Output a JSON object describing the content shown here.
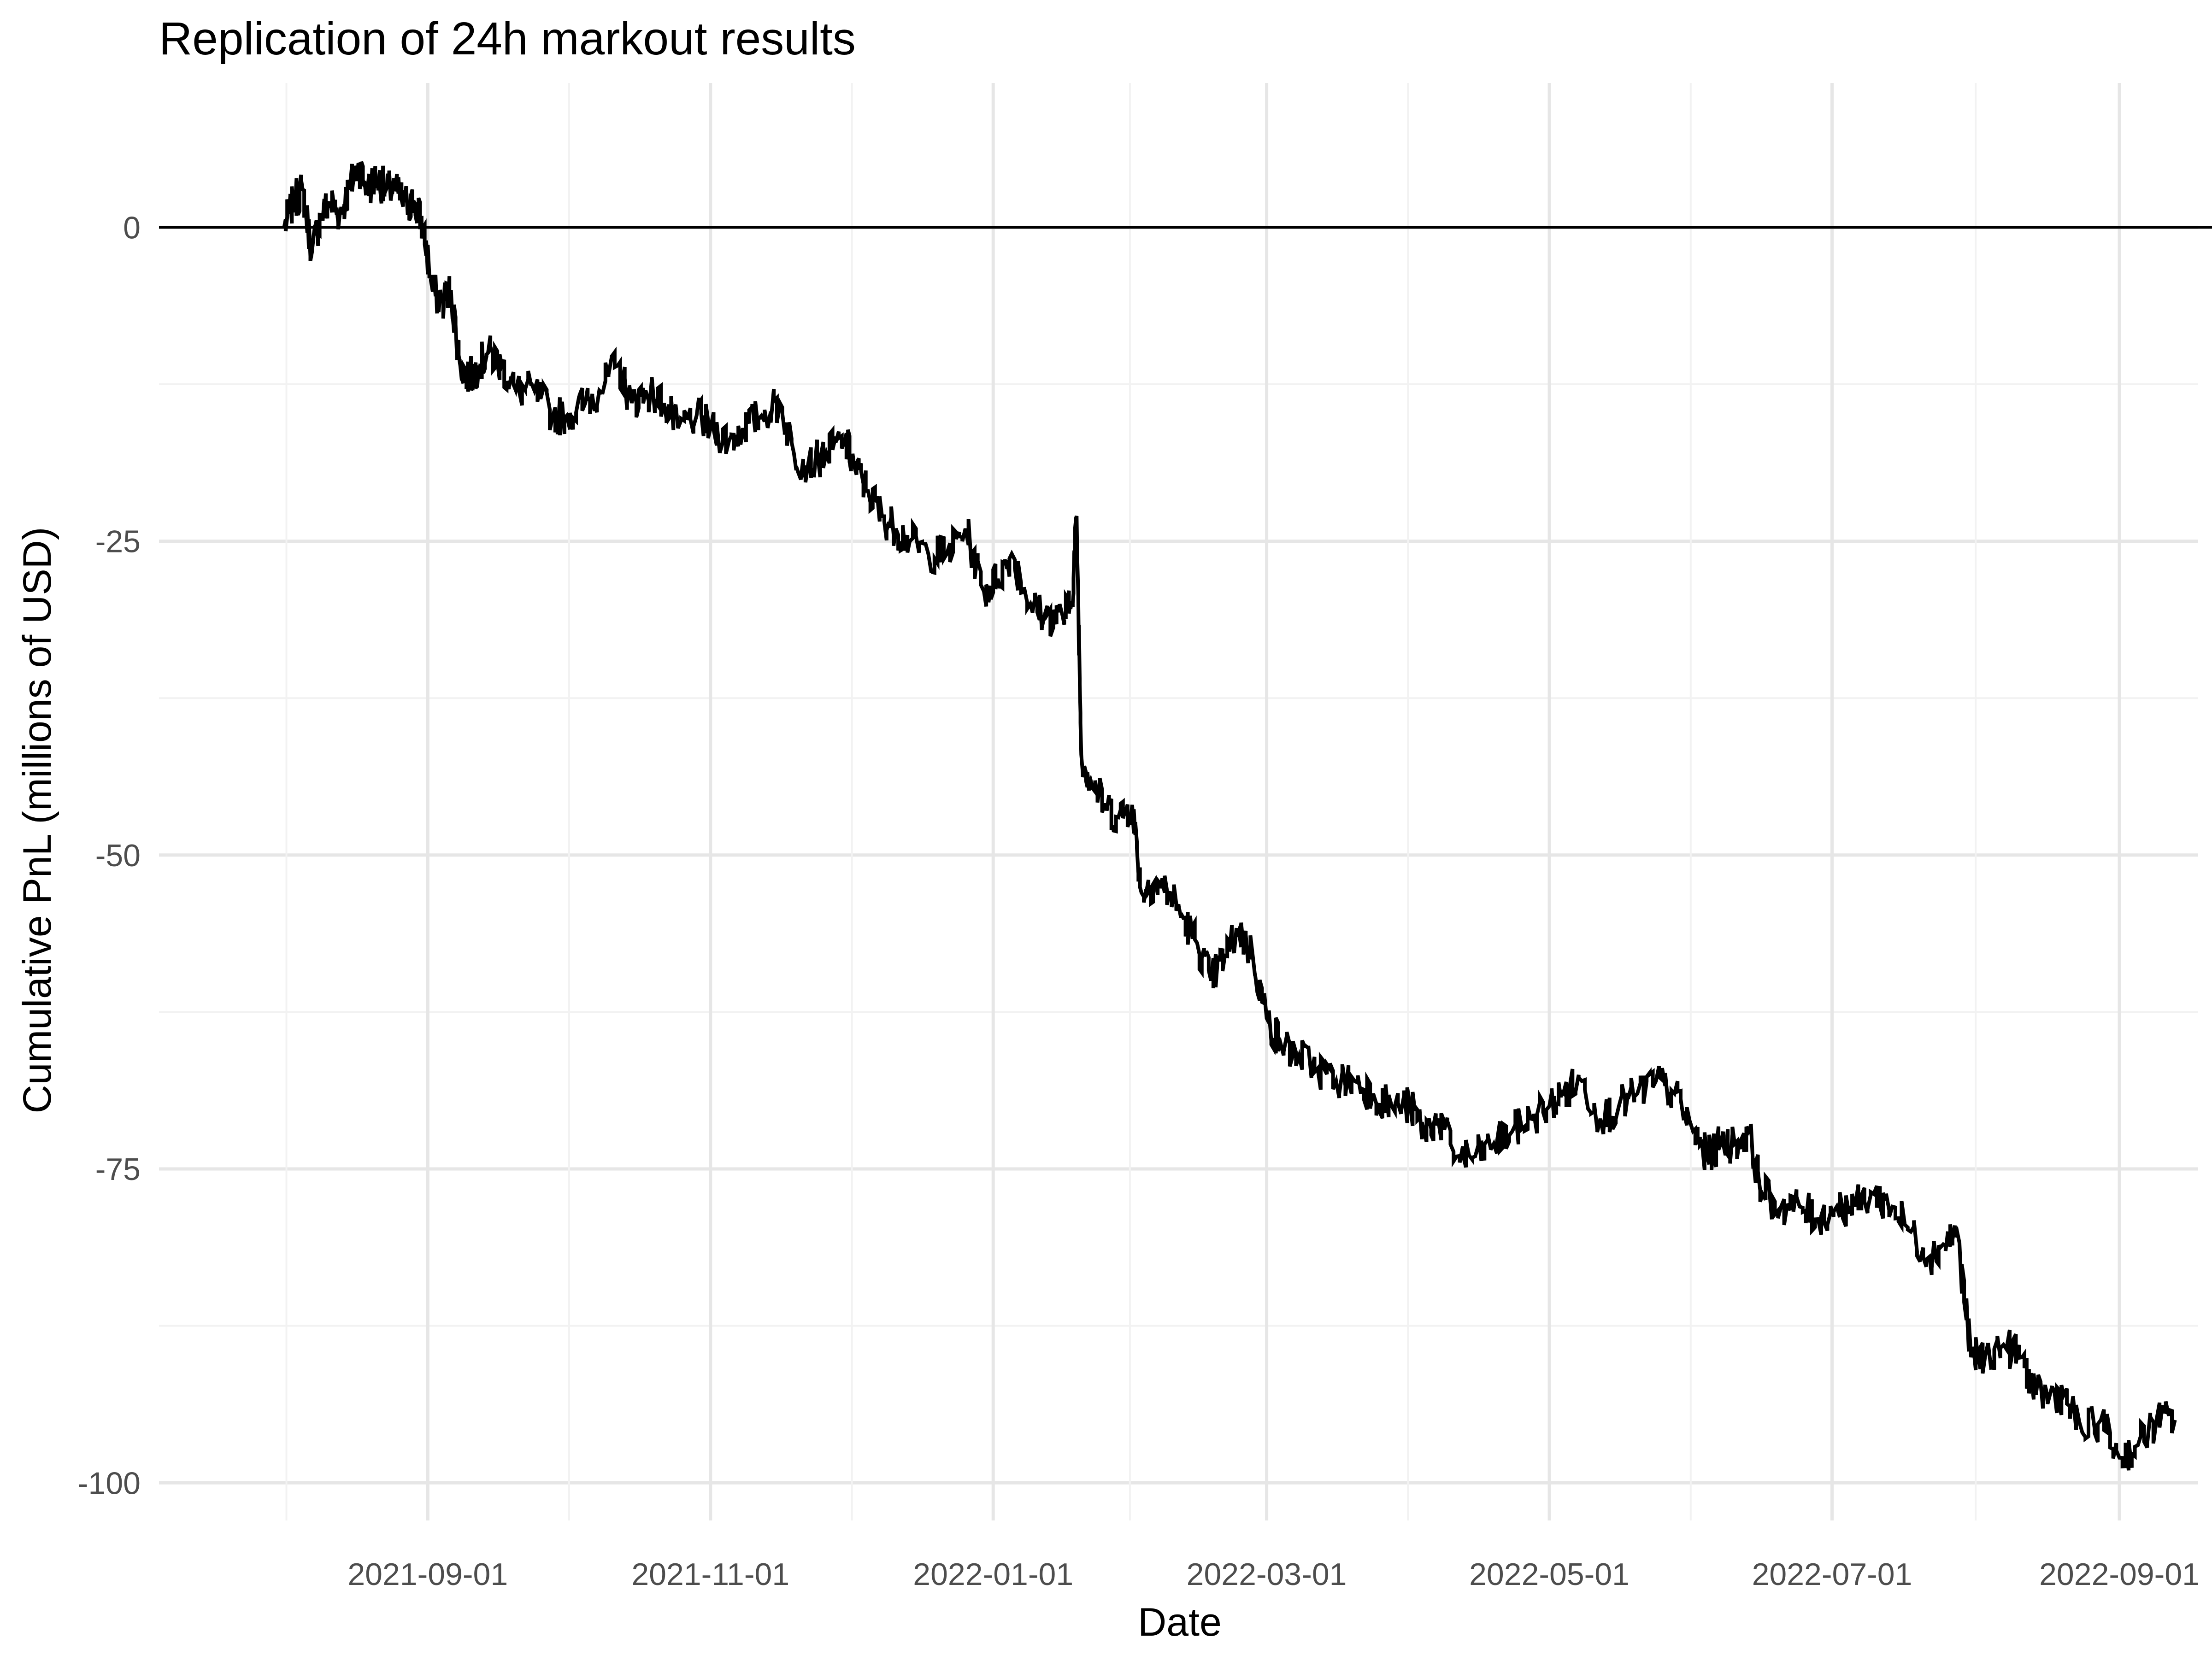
{
  "chart_data": {
    "type": "line",
    "title": "Replication of 24h markout results",
    "xlabel": "Date",
    "ylabel": "Cumulative PnL (millions of USD)",
    "x_axis": {
      "scale": "date",
      "range": [
        "2021-07-05",
        "2022-09-18"
      ],
      "major_ticks": [
        "2021-09-01",
        "2021-11-01",
        "2022-01-01",
        "2022-03-01",
        "2022-05-01",
        "2022-07-01",
        "2022-09-01"
      ]
    },
    "y_axis": {
      "range": [
        -103,
        11.5
      ],
      "major_ticks": [
        0,
        -25,
        -50,
        -75,
        -100
      ]
    },
    "grid": true,
    "legend": "none",
    "reference_line": {
      "y": 0,
      "color": "#000000"
    },
    "line_color": "#000000",
    "series": [
      {
        "x": [
          "2021-08-01",
          "2021-08-03",
          "2021-08-05",
          "2021-08-07",
          "2021-08-09",
          "2021-08-11",
          "2021-08-13",
          "2021-08-15",
          "2021-08-17",
          "2021-08-19",
          "2021-08-21",
          "2021-08-23",
          "2021-08-25",
          "2021-08-27",
          "2021-08-29",
          "2021-08-31",
          "2021-09-02",
          "2021-09-04",
          "2021-09-06",
          "2021-09-08",
          "2021-09-10",
          "2021-09-12",
          "2021-09-14",
          "2021-09-17",
          "2021-09-20",
          "2021-09-24",
          "2021-09-28",
          "2021-10-01",
          "2021-10-05",
          "2021-10-08",
          "2021-10-12",
          "2021-10-15",
          "2021-10-18",
          "2021-10-22",
          "2021-10-25",
          "2021-10-29",
          "2021-11-01",
          "2021-11-05",
          "2021-11-08",
          "2021-11-12",
          "2021-11-16",
          "2021-11-19",
          "2021-11-22",
          "2021-11-26",
          "2021-11-30",
          "2021-12-02",
          "2021-12-05",
          "2021-12-08",
          "2021-12-11",
          "2021-12-14",
          "2021-12-18",
          "2021-12-22",
          "2021-12-26",
          "2021-12-30",
          "2022-01-02",
          "2022-01-05",
          "2022-01-09",
          "2022-01-12",
          "2022-01-16",
          "2022-01-18",
          "2022-01-19",
          "2022-01-20",
          "2022-01-22",
          "2022-01-25",
          "2022-01-28",
          "2022-01-31",
          "2022-02-02",
          "2022-02-05",
          "2022-02-08",
          "2022-02-11",
          "2022-02-14",
          "2022-02-17",
          "2022-02-20",
          "2022-02-23",
          "2022-02-26",
          "2022-03-01",
          "2022-03-04",
          "2022-03-08",
          "2022-03-12",
          "2022-03-16",
          "2022-03-20",
          "2022-03-24",
          "2022-03-28",
          "2022-04-01",
          "2022-04-04",
          "2022-04-07",
          "2022-04-11",
          "2022-04-15",
          "2022-04-19",
          "2022-04-23",
          "2022-04-27",
          "2022-05-01",
          "2022-05-04",
          "2022-05-08",
          "2022-05-12",
          "2022-05-16",
          "2022-05-20",
          "2022-05-24",
          "2022-05-28",
          "2022-06-01",
          "2022-06-04",
          "2022-06-07",
          "2022-06-10",
          "2022-06-13",
          "2022-06-16",
          "2022-06-20",
          "2022-06-24",
          "2022-06-28",
          "2022-07-02",
          "2022-07-06",
          "2022-07-10",
          "2022-07-14",
          "2022-07-18",
          "2022-07-22",
          "2022-07-25",
          "2022-07-28",
          "2022-07-31",
          "2022-08-03",
          "2022-08-07",
          "2022-08-11",
          "2022-08-14",
          "2022-08-17",
          "2022-08-20",
          "2022-08-24",
          "2022-08-28",
          "2022-09-01",
          "2022-09-05",
          "2022-09-09",
          "2022-09-13"
        ],
        "values": [
          0,
          2,
          3,
          -2,
          1,
          2,
          1,
          3,
          5,
          3,
          4,
          3,
          3,
          2,
          2,
          0,
          -5,
          -6,
          -5,
          -11,
          -12,
          -11,
          -10,
          -11,
          -13,
          -13,
          -15,
          -15,
          -14,
          -13,
          -11,
          -14,
          -13,
          -14,
          -16,
          -15,
          -16,
          -17,
          -16,
          -15,
          -14,
          -18,
          -19,
          -18,
          -17,
          -19,
          -21,
          -23,
          -24,
          -25,
          -26,
          -26,
          -24,
          -29,
          -28,
          -26,
          -30,
          -31,
          -31,
          -30,
          -23,
          -42,
          -44,
          -46,
          -47,
          -46,
          -53,
          -52,
          -53,
          -55,
          -57,
          -60,
          -58,
          -56,
          -58,
          -63,
          -65,
          -66,
          -67,
          -68,
          -68,
          -69,
          -70,
          -70,
          -72,
          -71,
          -74,
          -74,
          -73,
          -72,
          -71,
          -70,
          -69,
          -68,
          -71,
          -70,
          -69,
          -68,
          -69,
          -72,
          -74,
          -73,
          -73,
          -72,
          -77,
          -78,
          -78,
          -79,
          -78,
          -78,
          -77,
          -78,
          -80,
          -82,
          -81,
          -80,
          -90,
          -90,
          -89,
          -90,
          -93,
          -93,
          -93,
          -96,
          -95,
          -98,
          -97,
          -95,
          -95
        ]
      }
    ]
  }
}
